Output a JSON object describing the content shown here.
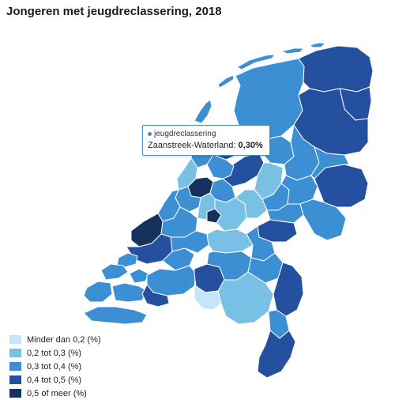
{
  "title": "Jongeren met jeugdreclassering, 2018",
  "colors": {
    "c1": "#c6e5f8",
    "c2": "#79c1e4",
    "c3": "#3d8fd3",
    "c4": "#24509f",
    "c5": "#15325f"
  },
  "tooltip": {
    "series": "jeugdreclassering",
    "region": "Zaanstreek-Waterland",
    "value": "0,30%",
    "dot_color": "#3d8fd3"
  },
  "legend": [
    {
      "label": "Minder dan 0,2 (%)",
      "color": "#c6e5f8"
    },
    {
      "label": "0,2 tot 0,3 (%)",
      "color": "#79c1e4"
    },
    {
      "label": "0,3 tot 0,4 (%)",
      "color": "#3d8fd3"
    },
    {
      "label": "0,4 tot 0,5 (%)",
      "color": "#24509f"
    },
    {
      "label": "0,5 of meer (%)",
      "color": "#15325f"
    }
  ]
}
